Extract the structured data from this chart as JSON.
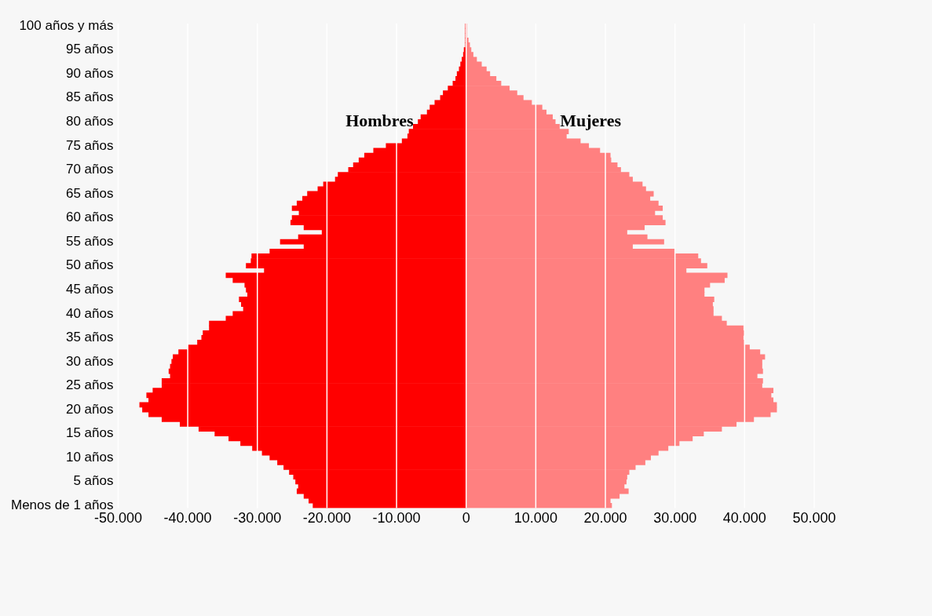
{
  "chart_data": {
    "type": "bar",
    "orientation": "horizontal",
    "stacked": true,
    "categories": [
      "100 años y más",
      null,
      null,
      null,
      null,
      "95 años",
      null,
      null,
      null,
      null,
      "90 años",
      null,
      null,
      null,
      null,
      "85 años",
      null,
      null,
      null,
      null,
      "80 años",
      null,
      null,
      null,
      null,
      "75 años",
      null,
      null,
      null,
      null,
      "70 años",
      null,
      null,
      null,
      null,
      "65 años",
      null,
      null,
      null,
      null,
      "60 años",
      null,
      null,
      null,
      null,
      "55 años",
      null,
      null,
      null,
      null,
      "50 años",
      null,
      null,
      null,
      null,
      "45 años",
      null,
      null,
      null,
      null,
      "40 años",
      null,
      null,
      null,
      null,
      "35 años",
      null,
      null,
      null,
      null,
      "30 años",
      null,
      null,
      null,
      null,
      "25 años",
      null,
      null,
      null,
      null,
      "20 años",
      null,
      null,
      null,
      null,
      "15 años",
      null,
      null,
      null,
      null,
      "10 años",
      null,
      null,
      null,
      null,
      "5 años",
      null,
      null,
      null,
      null,
      "Menos de 1 años"
    ],
    "series": [
      {
        "name": "Hombres",
        "color": "#ff0000",
        "values": [
          -100,
          -100,
          -100,
          -100,
          -100,
          -300,
          -400,
          -600,
          -800,
          -1000,
          -1300,
          -1500,
          -1900,
          -2600,
          -3300,
          -3700,
          -4500,
          -5200,
          -5600,
          -6500,
          -6900,
          -7600,
          -8200,
          -8400,
          -9200,
          -11500,
          -13300,
          -14600,
          -15400,
          -16200,
          -16900,
          -18400,
          -18800,
          -20500,
          -21300,
          -22800,
          -23500,
          -24300,
          -25000,
          -24000,
          -25000,
          -25200,
          -23300,
          -20700,
          -24100,
          -26700,
          -23300,
          -28200,
          -30800,
          -30900,
          -31600,
          -29000,
          -34500,
          -33500,
          -31800,
          -31600,
          -31400,
          -32600,
          -32300,
          -32000,
          -33500,
          -34500,
          -36900,
          -36900,
          -37800,
          -38000,
          -38600,
          -39900,
          -41300,
          -42100,
          -42300,
          -42500,
          -42700,
          -42500,
          -43700,
          -43700,
          -45000,
          -45900,
          -45600,
          -46900,
          -46500,
          -45600,
          -43700,
          -41100,
          -38400,
          -36100,
          -34100,
          -32400,
          -30700,
          -29300,
          -28200,
          -27100,
          -26200,
          -25400,
          -24800,
          -24500,
          -24100,
          -24300,
          -23300,
          -22600,
          -22000
        ]
      },
      {
        "name": "Mujeres",
        "color": "#ff8080",
        "values": [
          100,
          100,
          100,
          300,
          500,
          700,
          1000,
          1500,
          2200,
          2900,
          3400,
          4300,
          5000,
          6200,
          7300,
          8200,
          9400,
          10900,
          11500,
          12400,
          12800,
          13400,
          14700,
          14400,
          16400,
          17600,
          19200,
          20700,
          20800,
          21700,
          22200,
          23400,
          23900,
          25300,
          25800,
          26900,
          26400,
          27600,
          28200,
          27100,
          28200,
          28600,
          25600,
          23100,
          26000,
          28400,
          23900,
          29900,
          33300,
          33700,
          34600,
          31600,
          37500,
          37100,
          35000,
          34200,
          34200,
          35600,
          35400,
          35500,
          35500,
          36700,
          37400,
          39800,
          39900,
          39800,
          39900,
          40700,
          42200,
          42900,
          42500,
          42500,
          42600,
          41800,
          42600,
          42500,
          44100,
          43800,
          44100,
          44600,
          44600,
          43700,
          41300,
          38800,
          36700,
          34100,
          32500,
          30600,
          29000,
          27600,
          26500,
          25700,
          24300,
          23400,
          23100,
          23000,
          22700,
          23300,
          22000,
          20700,
          20900
        ]
      }
    ],
    "xlim": [
      -50000,
      50000
    ],
    "xticks": [
      {
        "value": -50000,
        "label": "-50.000"
      },
      {
        "value": -40000,
        "label": "-40.000"
      },
      {
        "value": -30000,
        "label": "-30.000"
      },
      {
        "value": -20000,
        "label": "-20.000"
      },
      {
        "value": -10000,
        "label": "-10.000"
      },
      0,
      {
        "value": 10000,
        "label": "10.000"
      },
      {
        "value": 20000,
        "label": "20.000"
      },
      {
        "value": 30000,
        "label": "30.000"
      },
      {
        "value": 40000,
        "label": "40.000"
      },
      {
        "value": 50000,
        "label": "50.000"
      }
    ],
    "grid": "x",
    "legend": false
  }
}
